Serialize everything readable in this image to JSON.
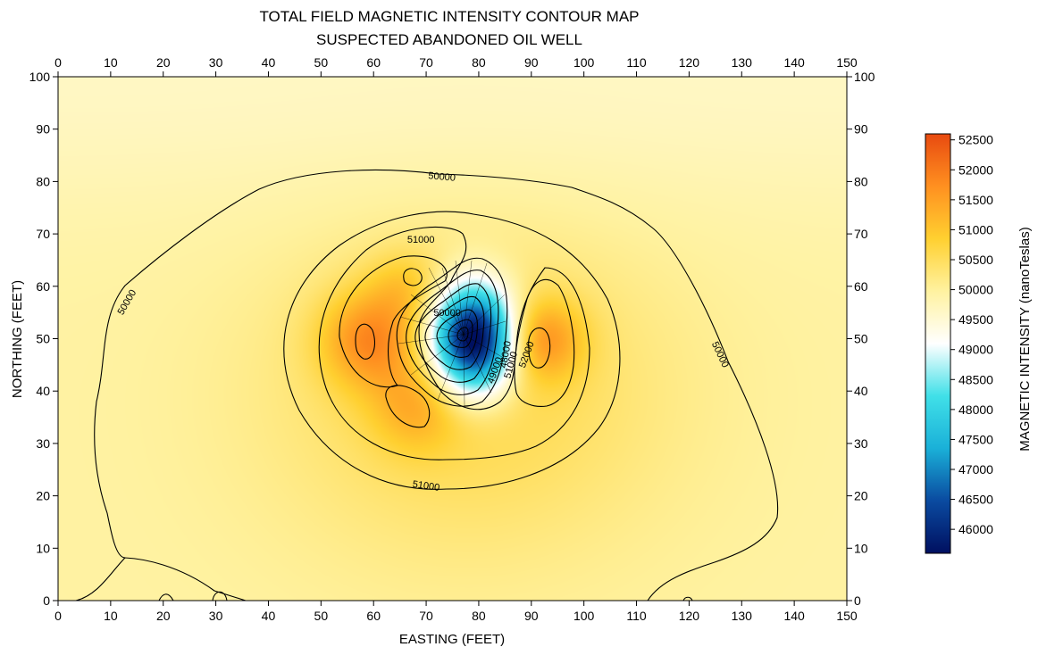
{
  "chart_data": {
    "type": "heatmap",
    "title": "TOTAL FIELD MAGNETIC INTENSITY CONTOUR MAP",
    "subtitle": "SUSPECTED ABANDONED OIL WELL",
    "xlabel": "EASTING (FEET)",
    "ylabel": "NORTHING (FEET)",
    "colorbar_label": "MAGNETIC INTENSITY (nanoTeslas)",
    "xlim": [
      0,
      150
    ],
    "ylim": [
      0,
      100
    ],
    "xticks": [
      "0",
      "10",
      "20",
      "30",
      "40",
      "50",
      "60",
      "70",
      "80",
      "90",
      "100",
      "110",
      "120",
      "130",
      "140",
      "150"
    ],
    "yticks": [
      "0",
      "10",
      "20",
      "30",
      "40",
      "50",
      "60",
      "70",
      "80",
      "90",
      "100"
    ],
    "colorbar_ticks": [
      "46000",
      "46500",
      "47000",
      "47500",
      "48000",
      "48500",
      "49000",
      "49500",
      "50000",
      "50500",
      "51000",
      "51500",
      "52000",
      "52500"
    ],
    "colorbar_range": [
      45600,
      52600
    ],
    "colormap": [
      "#001060",
      "#0a4aa0",
      "#1ab0d8",
      "#40e0e8",
      "#ffffff",
      "#fff2a0",
      "#ffd030",
      "#ff9020",
      "#e84a10"
    ],
    "anomaly": {
      "low_center": [
        79,
        50
      ],
      "high_west": [
        59,
        50
      ],
      "high_east": [
        92,
        50
      ],
      "high_south": [
        68,
        37
      ]
    },
    "contour_labels": [
      {
        "text": "50000",
        "x": 73,
        "y": 81,
        "rot": 5
      },
      {
        "text": "50000",
        "x": 13,
        "y": 57,
        "rot": -60
      },
      {
        "text": "50000",
        "x": 126,
        "y": 47,
        "rot": 65
      },
      {
        "text": "51000",
        "x": 69,
        "y": 69,
        "rot": 0
      },
      {
        "text": "51000",
        "x": 70,
        "y": 22,
        "rot": 8
      },
      {
        "text": "50000",
        "x": 74,
        "y": 55,
        "rot": 0
      },
      {
        "text": "48000",
        "x": 85,
        "y": 47,
        "rot": -80
      },
      {
        "text": "49000",
        "x": 83,
        "y": 44,
        "rot": -70
      },
      {
        "text": "51000",
        "x": 86,
        "y": 45,
        "rot": -75
      },
      {
        "text": "52000",
        "x": 89,
        "y": 47,
        "rot": -70
      }
    ]
  }
}
